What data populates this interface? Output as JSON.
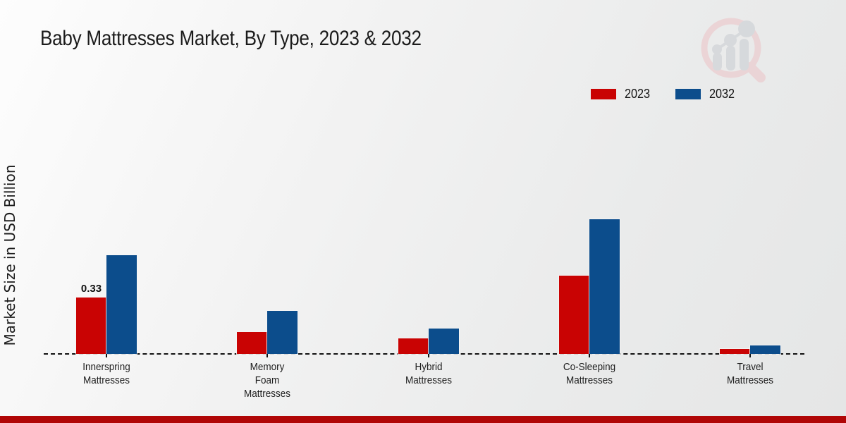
{
  "page": {
    "title": "Baby Mattresses Market, By Type, 2023 & 2032",
    "ylabel": "Market Size in USD Billion",
    "footer_color": "#b00606",
    "background_tint": "#ececec"
  },
  "legend": {
    "position": "top-right",
    "items": [
      {
        "label": "2023",
        "color": "#c90303"
      },
      {
        "label": "2032",
        "color": "#0c4d8c"
      }
    ]
  },
  "chart_data": {
    "type": "bar",
    "title": "Baby Mattresses Market, By Type, 2023 & 2032",
    "xlabel": "",
    "ylabel": "Market Size in USD Billion",
    "categories": [
      "Innerspring Mattresses",
      "Memory Foam Mattresses",
      "Hybrid Mattresses",
      "Co-Sleeping Mattresses",
      "Travel Mattresses"
    ],
    "category_lines": [
      [
        "Innerspring",
        "Mattresses"
      ],
      [
        "Memory",
        "Foam",
        "Mattresses"
      ],
      [
        "Hybrid",
        "Mattresses"
      ],
      [
        "Co-Sleeping",
        "Mattresses"
      ],
      [
        "Travel",
        "Mattresses"
      ]
    ],
    "series": [
      {
        "name": "2023",
        "color": "#c90303",
        "values": [
          0.33,
          0.13,
          0.09,
          0.46,
          0.03
        ]
      },
      {
        "name": "2032",
        "color": "#0c4d8c",
        "values": [
          0.58,
          0.25,
          0.15,
          0.79,
          0.05
        ]
      }
    ],
    "annotations": [
      {
        "series": "2023",
        "category_index": 0,
        "text": "0.33"
      }
    ],
    "ylim": [
      0,
      1.4
    ],
    "grid": false,
    "y_axis_ticks_visible": false,
    "baseline_style": "dashed",
    "legend_position": "top-right"
  },
  "watermark": {
    "name": "magnifier-bar-chart-logo"
  }
}
